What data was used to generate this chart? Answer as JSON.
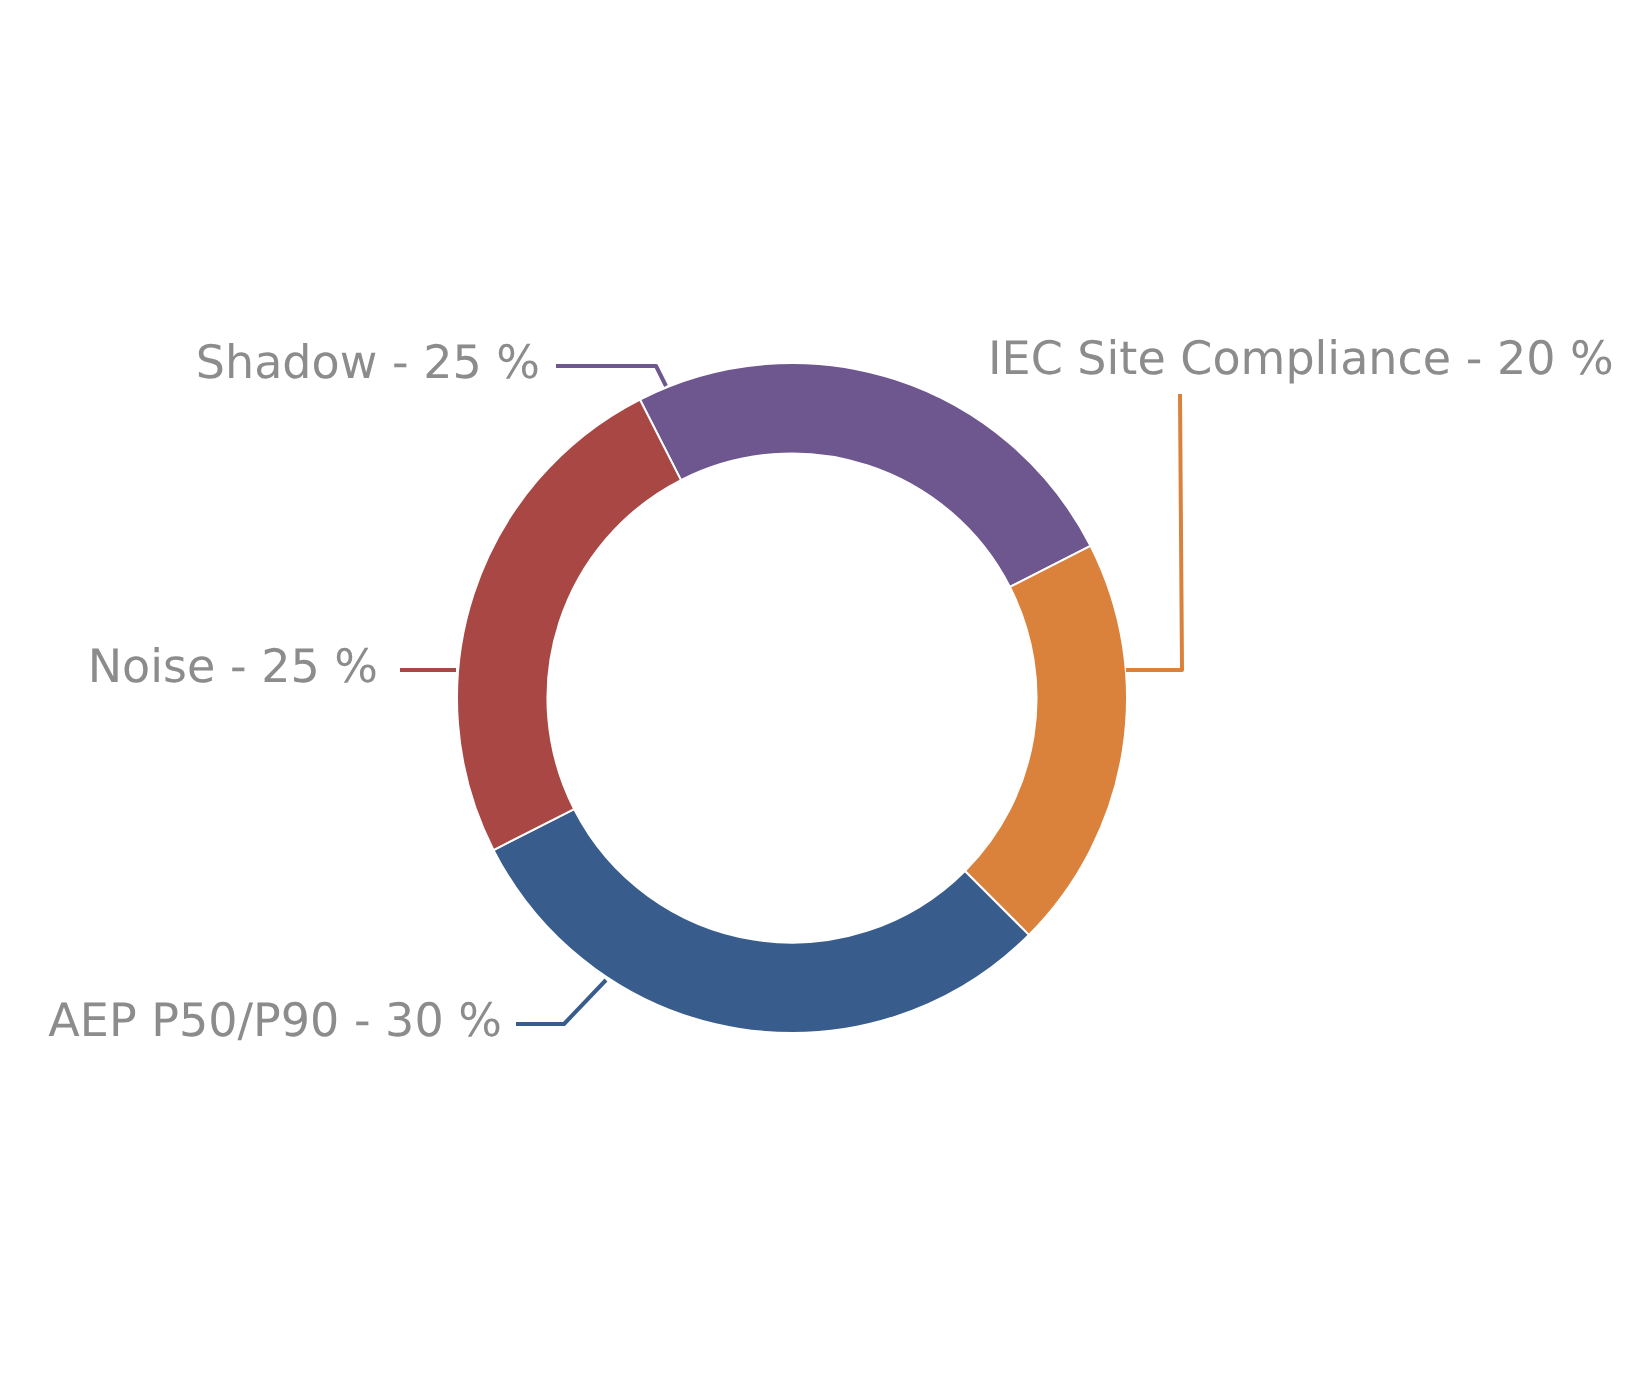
{
  "chart_data": {
    "type": "donut",
    "categories": [
      "Shadow",
      "IEC Site Compliance",
      "AEP P50/P90",
      "Noise"
    ],
    "values": [
      25,
      20,
      30,
      25
    ],
    "colors": [
      "#6e578e",
      "#da823b",
      "#385d8c",
      "#a84744"
    ],
    "value_labels": [
      "25 %",
      "20 %",
      "30 %",
      "25 %"
    ]
  }
}
